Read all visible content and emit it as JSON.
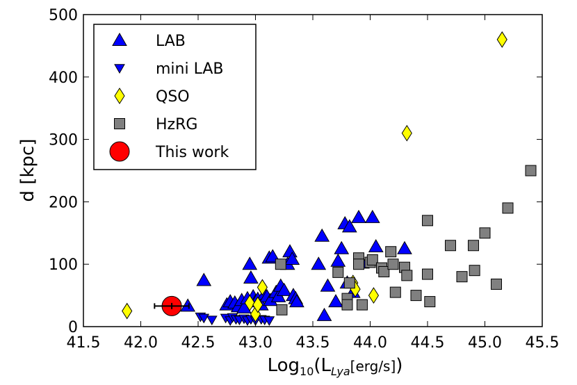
{
  "chart_data": {
    "type": "scatter",
    "title": "",
    "xlabel": {
      "prefix": "Log",
      "sub": "10",
      "paren_open": "(L",
      "sub2": "Lya",
      "unit": "[erg/s]",
      "paren_close": ")"
    },
    "ylabel": "d [kpc]",
    "xlim": [
      41.5,
      45.5
    ],
    "ylim": [
      0,
      500
    ],
    "xticks": [
      41.5,
      42.0,
      42.5,
      43.0,
      43.5,
      44.0,
      44.5,
      45.0,
      45.5
    ],
    "xtick_labels": [
      "41.5",
      "42.0",
      "42.5",
      "43.0",
      "43.5",
      "44.0",
      "44.5",
      "45.0",
      "45.5"
    ],
    "yticks": [
      0,
      100,
      200,
      300,
      400,
      500
    ],
    "ytick_labels": [
      "0",
      "100",
      "200",
      "300",
      "400",
      "500"
    ],
    "legend_position": "top-left",
    "series": [
      {
        "name": "LAB",
        "marker": "triangle-up",
        "color": "#0000ff",
        "points": [
          [
            42.41,
            33
          ],
          [
            42.55,
            74
          ],
          [
            42.75,
            35
          ],
          [
            42.78,
            40
          ],
          [
            42.82,
            38
          ],
          [
            42.85,
            32
          ],
          [
            42.88,
            42
          ],
          [
            42.9,
            30
          ],
          [
            42.93,
            45
          ],
          [
            42.95,
            100
          ],
          [
            42.96,
            78
          ],
          [
            42.98,
            48
          ],
          [
            43.0,
            40
          ],
          [
            43.02,
            44
          ],
          [
            43.05,
            35
          ],
          [
            43.08,
            52
          ],
          [
            43.1,
            48
          ],
          [
            43.12,
            110
          ],
          [
            43.13,
            42
          ],
          [
            43.15,
            112
          ],
          [
            43.18,
            55
          ],
          [
            43.2,
            48
          ],
          [
            43.22,
            65
          ],
          [
            43.25,
            58
          ],
          [
            43.28,
            100
          ],
          [
            43.3,
            120
          ],
          [
            43.32,
            108
          ],
          [
            43.33,
            50
          ],
          [
            43.35,
            45
          ],
          [
            43.36,
            40
          ],
          [
            43.55,
            100
          ],
          [
            43.58,
            145
          ],
          [
            43.6,
            18
          ],
          [
            43.63,
            65
          ],
          [
            43.7,
            40
          ],
          [
            43.72,
            105
          ],
          [
            43.75,
            125
          ],
          [
            43.78,
            165
          ],
          [
            43.8,
            70
          ],
          [
            43.82,
            160
          ],
          [
            43.85,
            55
          ],
          [
            43.9,
            175
          ],
          [
            43.93,
            102
          ],
          [
            44.02,
            175
          ],
          [
            44.05,
            128
          ],
          [
            44.3,
            125
          ]
        ]
      },
      {
        "name": "mini LAB",
        "marker": "triangle-down",
        "color": "#0000ff",
        "points": [
          [
            42.52,
            16
          ],
          [
            42.55,
            14
          ],
          [
            42.62,
            11
          ],
          [
            42.74,
            14
          ],
          [
            42.78,
            10
          ],
          [
            42.8,
            15
          ],
          [
            42.83,
            12
          ],
          [
            42.86,
            11
          ],
          [
            42.9,
            13
          ],
          [
            42.93,
            10
          ],
          [
            42.96,
            12
          ],
          [
            43.0,
            10
          ],
          [
            43.05,
            12
          ],
          [
            43.08,
            11
          ],
          [
            43.12,
            10
          ]
        ]
      },
      {
        "name": "QSO",
        "marker": "diamond",
        "color": "#ffff00",
        "points": [
          [
            41.88,
            25
          ],
          [
            42.95,
            38
          ],
          [
            43.0,
            20
          ],
          [
            43.02,
            35
          ],
          [
            43.06,
            63
          ],
          [
            43.85,
            70
          ],
          [
            43.87,
            60
          ],
          [
            44.03,
            50
          ],
          [
            44.32,
            310
          ],
          [
            45.15,
            460
          ]
        ]
      },
      {
        "name": "HzRG",
        "marker": "square",
        "color": "#808080",
        "points": [
          [
            43.22,
            100
          ],
          [
            43.23,
            27
          ],
          [
            43.72,
            87
          ],
          [
            43.8,
            45
          ],
          [
            43.8,
            35
          ],
          [
            43.82,
            70
          ],
          [
            43.9,
            110
          ],
          [
            43.9,
            100
          ],
          [
            43.93,
            35
          ],
          [
            44.0,
            103
          ],
          [
            44.02,
            107
          ],
          [
            44.1,
            94
          ],
          [
            44.12,
            88
          ],
          [
            44.18,
            120
          ],
          [
            44.2,
            100
          ],
          [
            44.22,
            55
          ],
          [
            44.3,
            95
          ],
          [
            44.32,
            82
          ],
          [
            44.4,
            50
          ],
          [
            44.5,
            170
          ],
          [
            44.52,
            40
          ],
          [
            44.5,
            84
          ],
          [
            44.7,
            130
          ],
          [
            44.8,
            80
          ],
          [
            44.9,
            130
          ],
          [
            44.91,
            90
          ],
          [
            45.0,
            150
          ],
          [
            45.1,
            68
          ],
          [
            45.2,
            190
          ],
          [
            45.4,
            250
          ]
        ]
      },
      {
        "name": "This work",
        "marker": "circle",
        "color": "#ff0000",
        "points": [
          [
            42.27,
            33
          ]
        ],
        "xerr": [
          0.15
        ],
        "yerr": [
          5
        ]
      }
    ]
  }
}
